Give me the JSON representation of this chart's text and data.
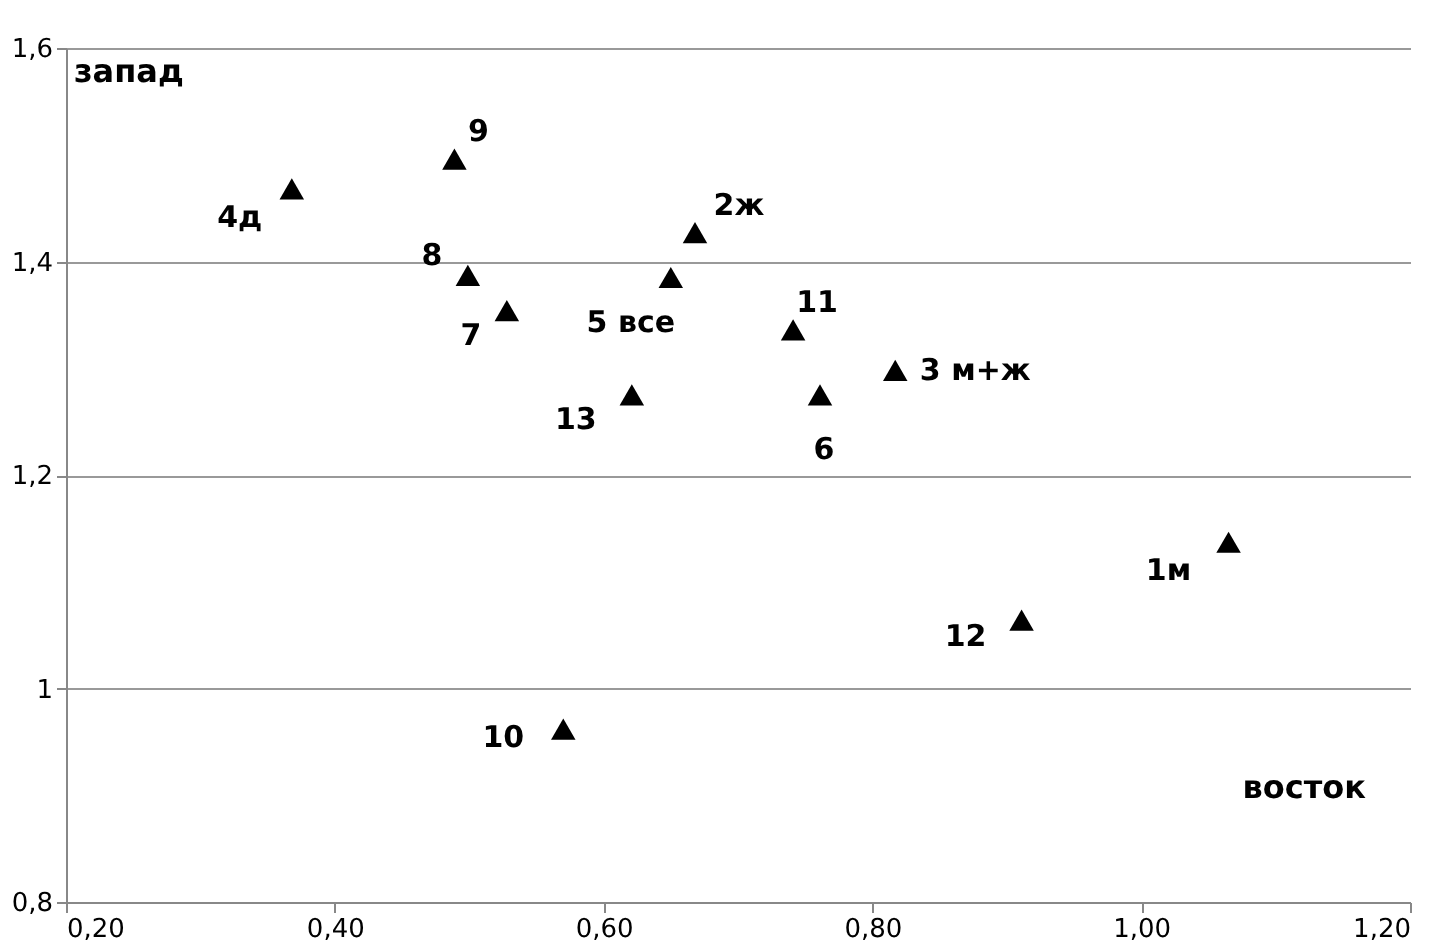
{
  "chart_data": {
    "type": "scatter",
    "xlabel": "восток",
    "ylabel": "запад",
    "x": [
      1.065,
      0.668,
      0.817,
      0.368,
      0.65,
      0.761,
      0.528,
      0.499,
      0.489,
      0.57,
      0.741,
      0.911,
      0.621
    ],
    "values": [
      1.137,
      1.427,
      1.298,
      1.468,
      1.385,
      1.275,
      1.354,
      1.387,
      1.496,
      0.962,
      1.336,
      1.064,
      1.275
    ],
    "annotations": [
      {
        "text": "1м",
        "x": 1.065,
        "y": 1.137
      },
      {
        "text": "2ж",
        "x": 0.668,
        "y": 1.427
      },
      {
        "text": "3 м+ж",
        "x": 0.817,
        "y": 1.298
      },
      {
        "text": "4д",
        "x": 0.368,
        "y": 1.468
      },
      {
        "text": "5 все",
        "x": 0.65,
        "y": 1.385
      },
      {
        "text": "6",
        "x": 0.761,
        "y": 1.275
      },
      {
        "text": "7",
        "x": 0.528,
        "y": 1.354
      },
      {
        "text": "8",
        "x": 0.499,
        "y": 1.387
      },
      {
        "text": "9",
        "x": 0.489,
        "y": 1.496
      },
      {
        "text": "10",
        "x": 0.57,
        "y": 0.962
      },
      {
        "text": "11",
        "x": 0.741,
        "y": 1.336
      },
      {
        "text": "12",
        "x": 0.911,
        "y": 1.064
      },
      {
        "text": "13",
        "x": 0.621,
        "y": 1.275
      }
    ],
    "color": "#000000",
    "marker": "triangle",
    "xlim": [
      0.2,
      1.2
    ],
    "xticks": [
      {
        "value": 0.2,
        "label": "0,20"
      },
      {
        "value": 0.4,
        "label": "0,40"
      },
      {
        "value": 0.6,
        "label": "0,60"
      },
      {
        "value": 0.8,
        "label": "0,80"
      },
      {
        "value": 1.0,
        "label": "1,00"
      },
      {
        "value": 1.2,
        "label": "1,20"
      }
    ],
    "ylim": [
      0.8,
      1.6
    ],
    "yticks": [
      {
        "value": 0.8,
        "label": "0,8"
      },
      {
        "value": 1.0,
        "label": "1"
      },
      {
        "value": 1.2,
        "label": "1,2"
      },
      {
        "value": 1.4,
        "label": "1,4"
      },
      {
        "value": 1.6,
        "label": "1,6"
      }
    ],
    "grid": "y"
  }
}
